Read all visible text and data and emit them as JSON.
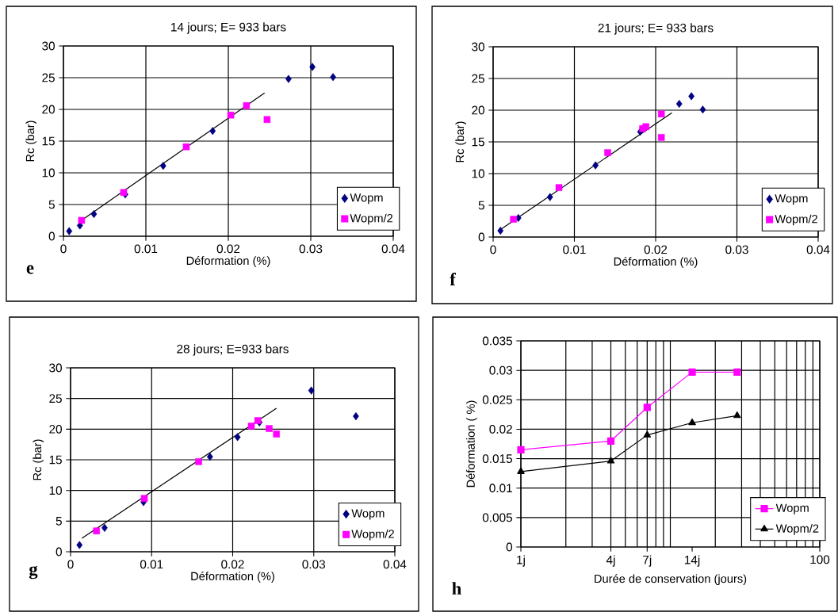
{
  "chart_data": [
    {
      "type": "scatter",
      "title": "14 jours; E= 933 bars",
      "xlabel": "Déformation (%)",
      "ylabel": "Rc (bar)",
      "annotations": [
        "e"
      ],
      "xlim": [
        0,
        0.04
      ],
      "ylim": [
        0,
        30
      ],
      "xticks": [
        0,
        0.01,
        0.02,
        0.03,
        0.04
      ],
      "yticks": [
        0,
        5,
        10,
        15,
        20,
        25,
        30
      ],
      "grid": true,
      "legend": "bottom right",
      "series": [
        {
          "name": "Wopm",
          "color": "#000080",
          "marker": "diamond",
          "x": [
            0.0007,
            0.002,
            0.0037,
            0.0075,
            0.0121,
            0.0181,
            0.0273,
            0.0302,
            0.0327
          ],
          "values": [
            0.8,
            1.7,
            3.5,
            6.6,
            11.1,
            16.6,
            24.8,
            26.7,
            25.1
          ]
        },
        {
          "name": "Wopm/2",
          "color": "#ff00ff",
          "marker": "square",
          "x": [
            0.0022,
            0.0073,
            0.0149,
            0.0203,
            0.0222,
            0.0247
          ],
          "values": [
            2.5,
            6.9,
            14.1,
            19.1,
            20.6,
            18.4
          ]
        },
        {
          "type": "line",
          "color": "#000000",
          "marker": "none",
          "x": [
            0.0024,
            0.0244
          ],
          "values": [
            2.7,
            22.6
          ]
        }
      ]
    },
    {
      "type": "scatter",
      "title": "21 jours; E= 933 bars",
      "xlabel": "Déformation (%)",
      "ylabel": "Rc (bar)",
      "annotations": [
        "f"
      ],
      "xlim": [
        0,
        0.04
      ],
      "ylim": [
        0,
        30
      ],
      "xticks": [
        0,
        0.01,
        0.02,
        0.03,
        0.04
      ],
      "yticks": [
        0,
        5,
        10,
        15,
        20,
        25,
        30
      ],
      "grid": true,
      "legend": "bottom right",
      "series": [
        {
          "name": "Wopm",
          "color": "#000080",
          "marker": "diamond",
          "x": [
            0.0009,
            0.0031,
            0.007,
            0.0126,
            0.0181,
            0.0229,
            0.0244,
            0.0258
          ],
          "values": [
            1.0,
            3.0,
            6.3,
            11.3,
            16.6,
            21.0,
            22.2,
            20.1
          ]
        },
        {
          "name": "Wopm/2",
          "color": "#ff00ff",
          "marker": "square",
          "x": [
            0.0025,
            0.0081,
            0.0141,
            0.0184,
            0.0188,
            0.0207,
            0.0207
          ],
          "values": [
            2.8,
            7.8,
            13.3,
            17.1,
            17.4,
            19.4,
            15.7
          ]
        },
        {
          "type": "line",
          "color": "#000000",
          "marker": "none",
          "x": [
            0.0007,
            0.022
          ],
          "values": [
            1.0,
            19.6
          ]
        }
      ]
    },
    {
      "type": "scatter",
      "title": "28 jours; E=933 bars",
      "xlabel": "Déformation (%)",
      "ylabel": "Rc (bar)",
      "annotations": [
        "g"
      ],
      "xlim": [
        0,
        0.04
      ],
      "ylim": [
        0,
        30
      ],
      "xticks": [
        0,
        0.01,
        0.02,
        0.03,
        0.04
      ],
      "yticks": [
        0,
        5,
        10,
        15,
        20,
        25,
        30
      ],
      "grid": true,
      "legend": "bottom right",
      "series": [
        {
          "name": "Wopm",
          "color": "#000080",
          "marker": "diamond",
          "x": [
            0.0011,
            0.0042,
            0.009,
            0.0172,
            0.0206,
            0.0233,
            0.0297,
            0.0352
          ],
          "values": [
            1.1,
            3.9,
            8.1,
            15.5,
            18.7,
            21.1,
            26.3,
            22.1
          ]
        },
        {
          "name": "Wopm/2",
          "color": "#ff00ff",
          "marker": "square",
          "x": [
            0.0032,
            0.0091,
            0.0158,
            0.0223,
            0.0231,
            0.0245,
            0.0254
          ],
          "values": [
            3.4,
            8.7,
            14.7,
            20.5,
            21.4,
            20.1,
            19.2
          ]
        },
        {
          "type": "line",
          "color": "#000000",
          "marker": "none",
          "x": [
            0.0014,
            0.0254
          ],
          "values": [
            2.2,
            23.4
          ]
        }
      ]
    },
    {
      "type": "line",
      "xlabel": "Durée de conservation (jours)",
      "ylabel": "Déformation ( %)",
      "annotations": [
        "h"
      ],
      "log": "x",
      "xlim": [
        1,
        100
      ],
      "ylim": [
        0,
        0.035
      ],
      "xticks": [
        {
          "value": 1,
          "label": "1j"
        },
        {
          "value": 4,
          "label": "4j"
        },
        {
          "value": 7,
          "label": "7j"
        },
        {
          "value": 14,
          "label": "14j"
        },
        {
          "value": 100,
          "label": "100"
        }
      ],
      "yticks": [
        0,
        0.005,
        0.01,
        0.015,
        0.02,
        0.025,
        0.03,
        0.035
      ],
      "grid": true,
      "legend": "bottom right",
      "series": [
        {
          "name": "Wopm",
          "color": "#ff00ff",
          "marker": "square",
          "x": [
            1,
            4,
            7,
            14,
            28
          ],
          "values": [
            0.0165,
            0.018,
            0.0237,
            0.0297,
            0.0297
          ]
        },
        {
          "name": "Wopm/2",
          "color": "#000000",
          "marker": "triangle",
          "x": [
            1,
            4,
            7,
            14,
            28
          ],
          "values": [
            0.0128,
            0.0146,
            0.019,
            0.0211,
            0.0223
          ]
        }
      ]
    }
  ]
}
